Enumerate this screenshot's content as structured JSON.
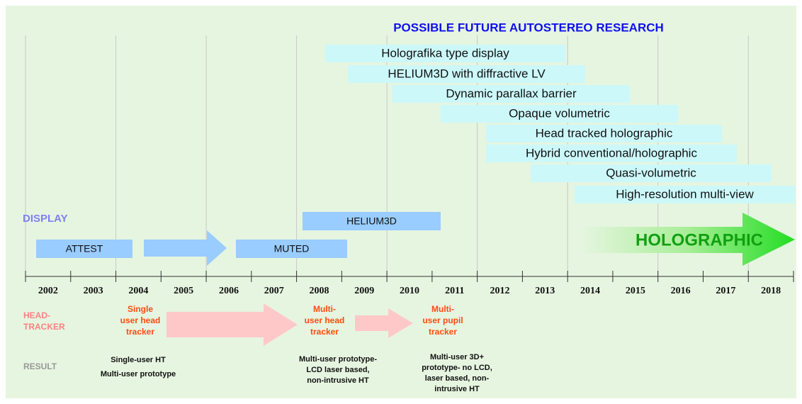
{
  "title": "POSSIBLE FUTURE AUTOSTEREO RESEARCH",
  "future_research": [
    "Holografika type display",
    "HELIUM3D with diffractive LV",
    "Dynamic parallax barrier",
    "Opaque volumetric",
    "Head tracked holographic",
    "Hybrid conventional/holographic",
    "Quasi-volumetric",
    "High-resolution multi-view"
  ],
  "display": {
    "label": "DISPLAY",
    "bars": [
      "ATTEST",
      "MUTED",
      "HELIUM3D"
    ],
    "arrow": "HOLOGRAPHIC"
  },
  "years": [
    "2002",
    "2003",
    "2004",
    "2005",
    "2006",
    "2007",
    "2008",
    "2009",
    "2010",
    "2011",
    "2012",
    "2013",
    "2014",
    "2015",
    "2016",
    "2017",
    "2018"
  ],
  "head_tracker": {
    "label": [
      "HEAD-",
      "TRACKER"
    ],
    "items": [
      [
        "Single",
        "user head",
        "tracker"
      ],
      [
        "Multi-",
        "user head",
        "tracker"
      ],
      [
        "Multi-",
        "user pupil",
        "tracker"
      ]
    ]
  },
  "result": {
    "label": "RESULT",
    "items": [
      [
        "Single-user HT",
        "Multi-user prototype"
      ],
      [
        "Multi-user prototype-",
        "LCD laser based,",
        "non-intrusive HT"
      ],
      [
        "Multi-user 3D+",
        "prototype-  no LCD,",
        "laser based, non-",
        "intrusive HT"
      ]
    ]
  }
}
